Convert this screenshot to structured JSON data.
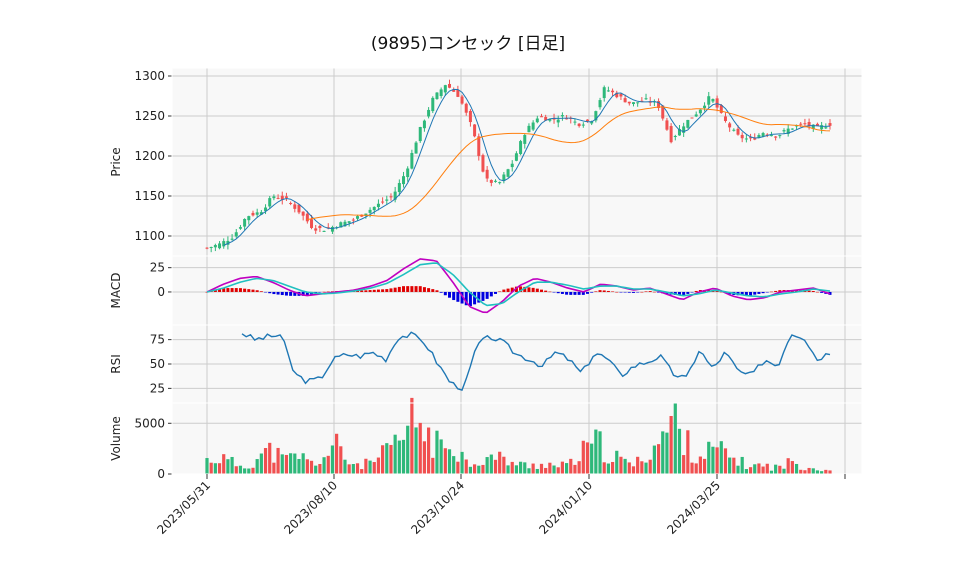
{
  "chart_data": {
    "type": "candlestick-with-indicators",
    "title": "(9895)コンセック [日足]",
    "x_ticks": [
      "2023/05/31",
      "2023/08/10",
      "2023/10/24",
      "2024/01/10",
      "2024/03/25"
    ],
    "colors": {
      "up": "#2eb87a",
      "down": "#f05050",
      "ma_short": "#1f77b4",
      "ma_long": "#ff7f0e",
      "macd": "#c000c0",
      "signal": "#20c0c0",
      "hist_pos": "#e00000",
      "hist_neg": "#0000e0",
      "rsi": "#1f77b4"
    },
    "panels": [
      {
        "key": "price",
        "ylabel": "Price",
        "ylim": [
          1075,
          1310
        ],
        "yticks": [
          1100,
          1150,
          1200,
          1250,
          1300
        ],
        "close_series": [
          1085,
          1090,
          1100,
          1125,
          1130,
          1150,
          1145,
          1130,
          1110,
          1108,
          1115,
          1120,
          1130,
          1140,
          1150,
          1180,
          1230,
          1270,
          1290,
          1275,
          1235,
          1170,
          1165,
          1190,
          1230,
          1250,
          1245,
          1250,
          1240,
          1245,
          1285,
          1275,
          1265,
          1270,
          1265,
          1220,
          1240,
          1255,
          1275,
          1245,
          1225,
          1220,
          1230,
          1225,
          1235,
          1240,
          1235,
          1240
        ]
      },
      {
        "key": "macd",
        "ylabel": "MACD",
        "ylim": [
          -34,
          37
        ],
        "yticks": [
          0,
          25
        ],
        "macd_series": [
          0,
          8,
          14,
          16,
          10,
          2,
          -4,
          -2,
          0,
          2,
          6,
          12,
          24,
          34,
          32,
          10,
          -15,
          -22,
          -10,
          6,
          14,
          10,
          4,
          0,
          8,
          6,
          2,
          4,
          -2,
          -8,
          0,
          4,
          -4,
          -8,
          -6,
          0,
          2,
          4,
          -2
        ],
        "signal_series": [
          0,
          4,
          10,
          14,
          12,
          6,
          0,
          -2,
          -1,
          1,
          4,
          9,
          18,
          28,
          30,
          18,
          0,
          -14,
          -12,
          0,
          10,
          10,
          7,
          3,
          6,
          6,
          3,
          3,
          0,
          -4,
          -2,
          2,
          -1,
          -4,
          -5,
          -2,
          0,
          3,
          1
        ],
        "hist_series": [
          0,
          4,
          4,
          2,
          -2,
          -4,
          -4,
          0,
          1,
          1,
          2,
          3,
          6,
          6,
          2,
          -8,
          -15,
          -8,
          2,
          6,
          4,
          0,
          -3,
          -3,
          2,
          0,
          -1,
          1,
          -2,
          -4,
          2,
          2,
          -3,
          -4,
          -1,
          2,
          2,
          1,
          -3
        ]
      },
      {
        "key": "rsi",
        "ylabel": "RSI",
        "ylim": [
          10,
          90
        ],
        "yticks": [
          25,
          50,
          75
        ],
        "rsi_series": [
          82,
          75,
          78,
          80,
          40,
          32,
          35,
          55,
          60,
          58,
          62,
          55,
          78,
          80,
          72,
          50,
          30,
          25,
          70,
          78,
          72,
          60,
          55,
          48,
          62,
          55,
          40,
          62,
          55,
          38,
          48,
          52,
          58,
          40,
          35,
          65,
          45,
          62,
          42,
          38,
          55,
          48,
          82,
          78,
          55,
          62
        ]
      },
      {
        "key": "volume",
        "ylabel": "Volume",
        "ylim": [
          0,
          7000
        ],
        "yticks": [
          0,
          5000
        ],
        "volume_series": [
          1500,
          1800,
          1200,
          800,
          1900,
          2600,
          1400,
          2200,
          1100,
          1800,
          3000,
          1200,
          1000,
          1400,
          2600,
          3600,
          6200,
          4200,
          2700,
          3800,
          1200,
          1500,
          1800,
          1600,
          1000,
          900,
          1200,
          800,
          1100,
          2400,
          3400,
          2200,
          1400,
          1000,
          2500,
          3800,
          6000,
          3200,
          2000,
          2700,
          2200,
          1300,
          900,
          900,
          700,
          1300,
          900,
          600,
          400
        ]
      }
    ]
  }
}
